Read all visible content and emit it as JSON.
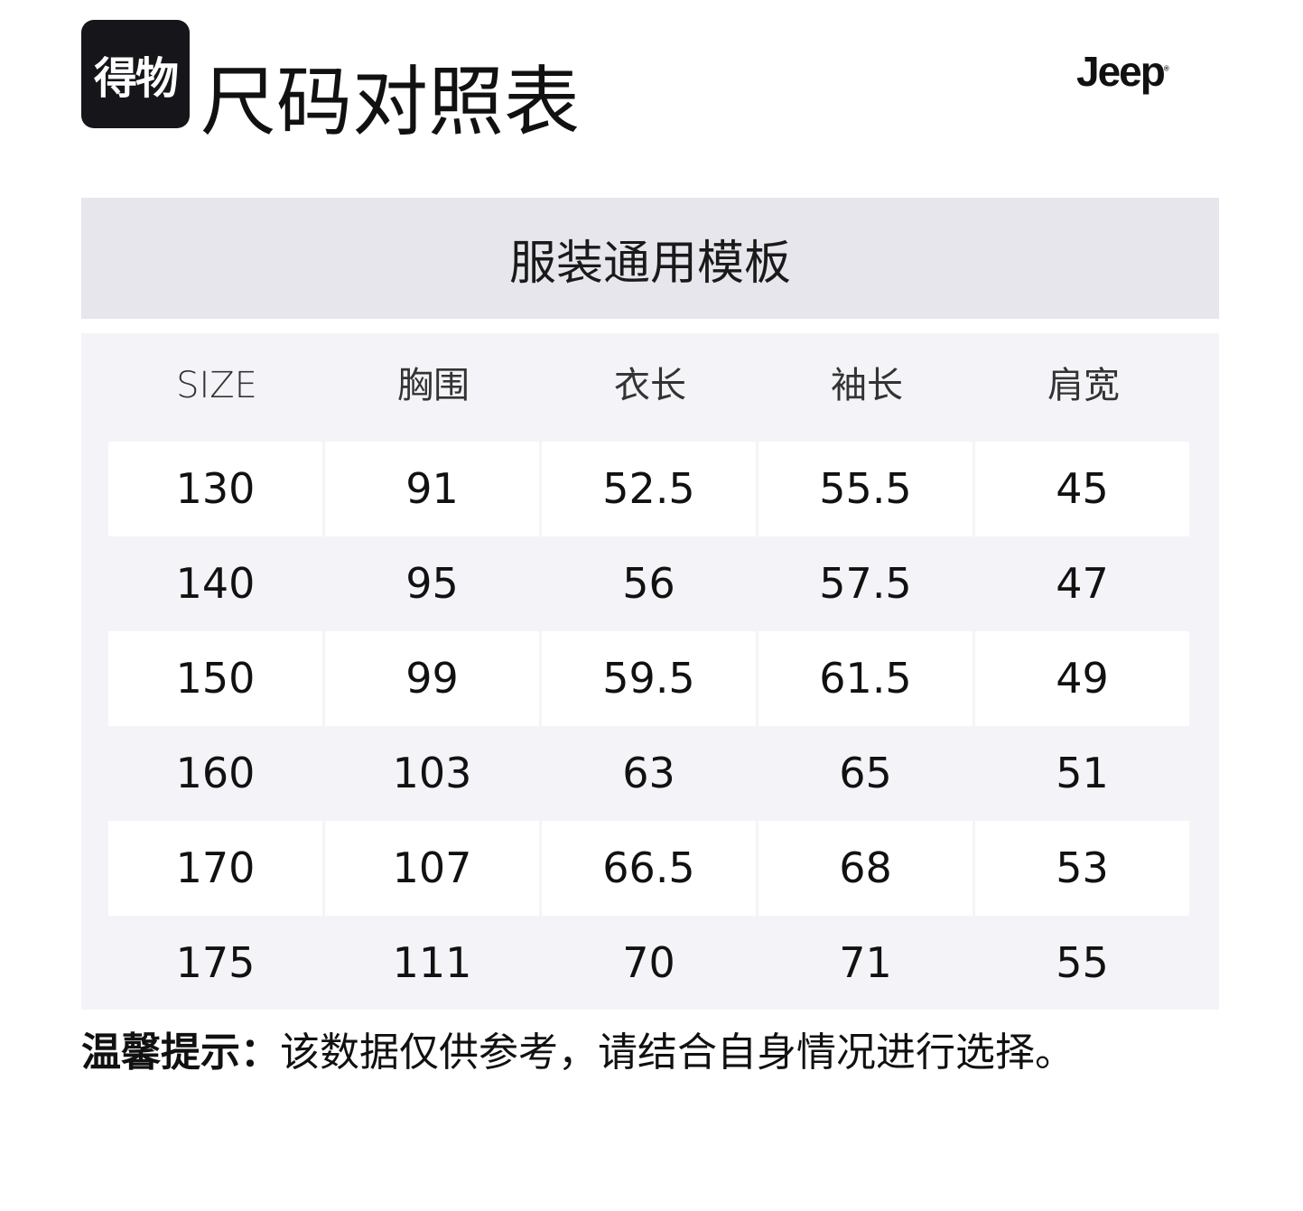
{
  "header": {
    "logo_text": "得物",
    "title": "尺码对照表",
    "brand": "Jeep"
  },
  "table": {
    "template_title": "服装通用模板",
    "columns": [
      "SIZE",
      "胸围",
      "衣长",
      "袖长",
      "肩宽"
    ],
    "rows": [
      [
        "130",
        "91",
        "52.5",
        "55.5",
        "45"
      ],
      [
        "140",
        "95",
        "56",
        "57.5",
        "47"
      ],
      [
        "150",
        "99",
        "59.5",
        "61.5",
        "49"
      ],
      [
        "160",
        "103",
        "63",
        "65",
        "51"
      ],
      [
        "170",
        "107",
        "66.5",
        "68",
        "53"
      ],
      [
        "175",
        "111",
        "70",
        "71",
        "55"
      ]
    ]
  },
  "footer": {
    "tip_label": "温馨提示：",
    "tip_text": "该数据仅供参考，请结合自身情况进行选择。"
  }
}
